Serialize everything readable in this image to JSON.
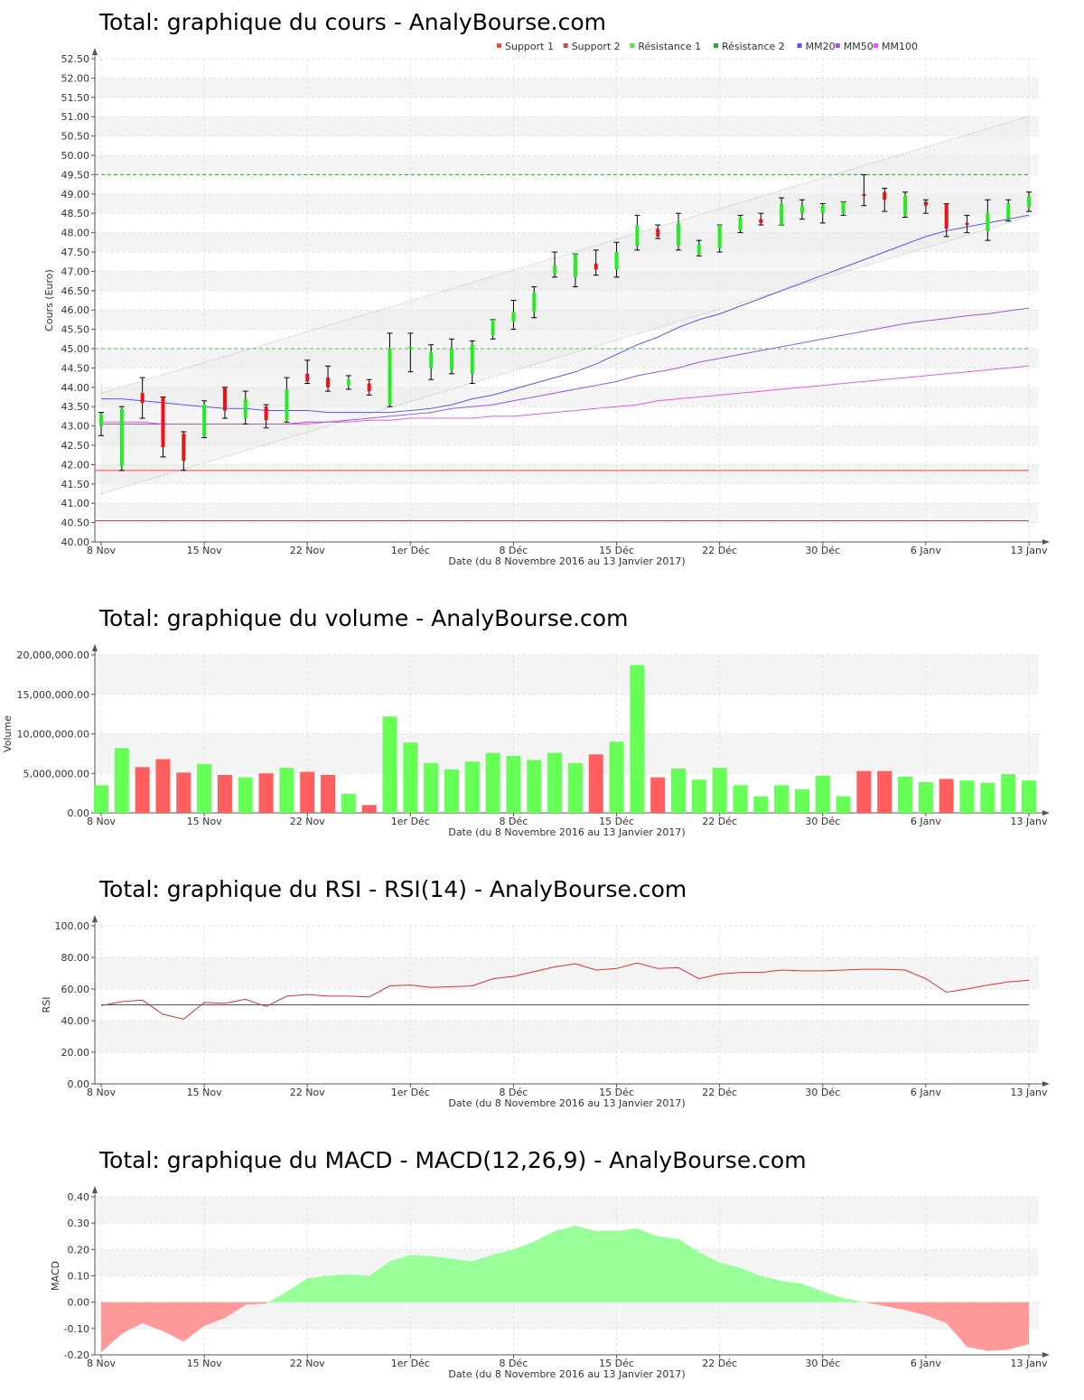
{
  "x_ticks": [
    "8 Nov",
    "15 Nov",
    "22 Nov",
    "1er Déc",
    "8 Déc",
    "15 Déc",
    "22 Déc",
    "30 Déc",
    "6 Janv",
    "13 Janv"
  ],
  "x_axis_label": "Date (du 8 Novembre 2016 au 13 Janvier 2017)",
  "chart_data": [
    {
      "type": "candlestick",
      "title": "Total: graphique du cours - AnalyBourse.com",
      "ylabel": "Cours (Euro)",
      "ylim": [
        40.0,
        52.5
      ],
      "yticks": [
        "40.00",
        "40.50",
        "41.00",
        "41.50",
        "42.00",
        "42.50",
        "43.00",
        "43.50",
        "44.00",
        "44.50",
        "45.00",
        "45.50",
        "46.00",
        "46.50",
        "47.00",
        "47.50",
        "48.00",
        "48.50",
        "49.00",
        "49.50",
        "50.00",
        "50.50",
        "51.00",
        "51.50",
        "52.00",
        "52.50"
      ],
      "legend": [
        {
          "label": "Support 1",
          "color": "#e05050"
        },
        {
          "label": "Support 2",
          "color": "#b05050"
        },
        {
          "label": "Résistance 1",
          "color": "#50e050"
        },
        {
          "label": "Résistance 2",
          "color": "#30a030"
        },
        {
          "label": "MM20",
          "color": "#5555ff"
        },
        {
          "label": "MM50",
          "color": "#9955ee"
        },
        {
          "label": "MM100",
          "color": "#ee55ee"
        }
      ],
      "support_1": 41.85,
      "support_2": 40.55,
      "resistance_1": 45.0,
      "resistance_2": 49.5,
      "candles": [
        {
          "o": 43.0,
          "h": 43.35,
          "l": 42.75,
          "c": 43.3
        },
        {
          "o": 41.95,
          "h": 43.5,
          "l": 41.85,
          "c": 43.45
        },
        {
          "o": 43.85,
          "h": 44.25,
          "l": 43.2,
          "c": 43.6
        },
        {
          "o": 43.75,
          "h": 43.75,
          "l": 42.2,
          "c": 42.45
        },
        {
          "o": 42.8,
          "h": 42.85,
          "l": 41.85,
          "c": 42.1
        },
        {
          "o": 42.75,
          "h": 43.65,
          "l": 42.7,
          "c": 43.55
        },
        {
          "o": 44.0,
          "h": 44.0,
          "l": 43.2,
          "c": 43.4
        },
        {
          "o": 43.2,
          "h": 43.9,
          "l": 43.05,
          "c": 43.7
        },
        {
          "o": 43.5,
          "h": 43.55,
          "l": 42.95,
          "c": 43.15
        },
        {
          "o": 43.15,
          "h": 44.25,
          "l": 43.1,
          "c": 43.95
        },
        {
          "o": 44.35,
          "h": 44.7,
          "l": 44.1,
          "c": 44.15
        },
        {
          "o": 44.25,
          "h": 44.55,
          "l": 43.9,
          "c": 44.0
        },
        {
          "o": 44.05,
          "h": 44.3,
          "l": 43.95,
          "c": 44.2
        },
        {
          "o": 44.1,
          "h": 44.2,
          "l": 43.8,
          "c": 43.9
        },
        {
          "o": 43.55,
          "h": 45.4,
          "l": 43.5,
          "c": 45.0
        },
        {
          "o": 45.0,
          "h": 45.4,
          "l": 44.4,
          "c": 45.05
        },
        {
          "o": 44.5,
          "h": 45.1,
          "l": 44.2,
          "c": 44.9
        },
        {
          "o": 44.45,
          "h": 45.25,
          "l": 44.35,
          "c": 45.0
        },
        {
          "o": 44.35,
          "h": 45.2,
          "l": 44.1,
          "c": 45.1
        },
        {
          "o": 45.35,
          "h": 45.75,
          "l": 45.25,
          "c": 45.75
        },
        {
          "o": 45.7,
          "h": 46.25,
          "l": 45.5,
          "c": 45.95
        },
        {
          "o": 45.95,
          "h": 46.6,
          "l": 45.8,
          "c": 46.45
        },
        {
          "o": 46.95,
          "h": 47.5,
          "l": 46.85,
          "c": 47.15
        },
        {
          "o": 46.85,
          "h": 47.45,
          "l": 46.6,
          "c": 47.45
        },
        {
          "o": 47.2,
          "h": 47.55,
          "l": 46.9,
          "c": 47.05
        },
        {
          "o": 47.05,
          "h": 47.75,
          "l": 46.85,
          "c": 47.5
        },
        {
          "o": 47.65,
          "h": 48.45,
          "l": 47.55,
          "c": 48.2
        },
        {
          "o": 48.1,
          "h": 48.2,
          "l": 47.85,
          "c": 47.9
        },
        {
          "o": 47.65,
          "h": 48.5,
          "l": 47.55,
          "c": 48.25
        },
        {
          "o": 47.45,
          "h": 47.8,
          "l": 47.4,
          "c": 47.7
        },
        {
          "o": 47.6,
          "h": 48.2,
          "l": 47.5,
          "c": 48.2
        },
        {
          "o": 48.05,
          "h": 48.45,
          "l": 48.0,
          "c": 48.4
        },
        {
          "o": 48.35,
          "h": 48.5,
          "l": 48.2,
          "c": 48.25
        },
        {
          "o": 48.2,
          "h": 48.9,
          "l": 48.2,
          "c": 48.75
        },
        {
          "o": 48.5,
          "h": 48.85,
          "l": 48.35,
          "c": 48.7
        },
        {
          "o": 48.5,
          "h": 48.75,
          "l": 48.25,
          "c": 48.7
        },
        {
          "o": 48.5,
          "h": 48.8,
          "l": 48.45,
          "c": 48.8
        },
        {
          "o": 49.0,
          "h": 49.5,
          "l": 48.7,
          "c": 48.95
        },
        {
          "o": 49.05,
          "h": 49.15,
          "l": 48.55,
          "c": 48.85
        },
        {
          "o": 48.45,
          "h": 49.05,
          "l": 48.4,
          "c": 48.95
        },
        {
          "o": 48.8,
          "h": 48.85,
          "l": 48.5,
          "c": 48.7
        },
        {
          "o": 48.75,
          "h": 48.75,
          "l": 47.9,
          "c": 48.1
        },
        {
          "o": 48.25,
          "h": 48.45,
          "l": 48.0,
          "c": 48.2
        },
        {
          "o": 48.05,
          "h": 48.85,
          "l": 47.8,
          "c": 48.5
        },
        {
          "o": 48.35,
          "h": 48.85,
          "l": 48.3,
          "c": 48.75
        },
        {
          "o": 48.65,
          "h": 49.05,
          "l": 48.55,
          "c": 48.95
        }
      ],
      "mm20": [
        43.7,
        43.7,
        43.65,
        43.6,
        43.55,
        43.5,
        43.45,
        43.45,
        43.4,
        43.4,
        43.4,
        43.35,
        43.35,
        43.35,
        43.35,
        43.4,
        43.45,
        43.55,
        43.7,
        43.8,
        43.95,
        44.1,
        44.25,
        44.4,
        44.6,
        44.85,
        45.1,
        45.3,
        45.55,
        45.75,
        45.9,
        46.1,
        46.3,
        46.5,
        46.7,
        46.9,
        47.1,
        47.3,
        47.5,
        47.7,
        47.9,
        48.05,
        48.15,
        48.25,
        48.35,
        48.45
      ],
      "mm50": [
        43.05,
        43.05,
        43.05,
        43.05,
        43.05,
        43.05,
        43.05,
        43.05,
        43.05,
        43.05,
        43.1,
        43.1,
        43.15,
        43.2,
        43.25,
        43.3,
        43.35,
        43.45,
        43.5,
        43.55,
        43.65,
        43.75,
        43.85,
        43.95,
        44.05,
        44.15,
        44.3,
        44.4,
        44.5,
        44.65,
        44.75,
        44.85,
        44.95,
        45.05,
        45.15,
        45.25,
        45.35,
        45.45,
        45.55,
        45.65,
        45.72,
        45.78,
        45.85,
        45.9,
        45.98,
        46.05
      ],
      "mm100": [
        43.1,
        43.1,
        43.1,
        43.05,
        43.05,
        43.05,
        43.05,
        43.05,
        43.05,
        43.05,
        43.05,
        43.1,
        43.1,
        43.15,
        43.15,
        43.2,
        43.2,
        43.2,
        43.2,
        43.25,
        43.25,
        43.3,
        43.35,
        43.4,
        43.45,
        43.5,
        43.55,
        43.65,
        43.7,
        43.75,
        43.8,
        43.85,
        43.9,
        43.95,
        44.0,
        44.05,
        44.1,
        44.15,
        44.2,
        44.25,
        44.3,
        44.35,
        44.4,
        44.45,
        44.5,
        44.55
      ]
    },
    {
      "type": "bar",
      "title": "Total: graphique du volume - AnalyBourse.com",
      "ylabel": "Volume",
      "ylim": [
        0,
        20000000
      ],
      "yticks": [
        "0.00",
        "5,000,000.00",
        "10,000,000.00",
        "15,000,000.00",
        "20,000,000.00"
      ],
      "values": [
        3500000,
        8200000,
        5800000,
        6800000,
        5100000,
        6200000,
        4800000,
        4500000,
        5000000,
        5700000,
        5200000,
        4800000,
        2400000,
        1000000,
        12200000,
        8900000,
        6300000,
        5500000,
        6500000,
        7600000,
        7200000,
        6700000,
        7600000,
        6300000,
        7400000,
        9000000,
        18700000,
        4500000,
        5600000,
        4200000,
        5700000,
        3500000,
        2100000,
        3500000,
        3000000,
        4700000,
        2100000,
        5300000,
        5300000,
        4600000,
        3900000,
        4300000,
        4100000,
        3800000,
        4900000,
        4100000
      ],
      "up": [
        true,
        true,
        false,
        false,
        false,
        true,
        false,
        true,
        false,
        true,
        false,
        false,
        true,
        false,
        true,
        true,
        true,
        true,
        true,
        true,
        true,
        true,
        true,
        true,
        false,
        true,
        true,
        false,
        true,
        true,
        true,
        true,
        true,
        true,
        true,
        true,
        true,
        false,
        false,
        true,
        true,
        false,
        true,
        true,
        true,
        true
      ]
    },
    {
      "type": "line",
      "title": "Total: graphique du RSI - RSI(14) - AnalyBourse.com",
      "ylabel": "RSI",
      "ylim": [
        0,
        100
      ],
      "yticks": [
        "0.00",
        "20.00",
        "40.00",
        "60.00",
        "80.00",
        "100.00"
      ],
      "reference": 50,
      "values": [
        49.5,
        52,
        53,
        44,
        41,
        51.5,
        51,
        53.5,
        49,
        55.5,
        56.5,
        55.5,
        55.5,
        55,
        62,
        62.5,
        61,
        61.5,
        62,
        66.5,
        68,
        71,
        74,
        76,
        72,
        73,
        76.5,
        73,
        73.5,
        66.5,
        69.5,
        70.5,
        70.5,
        72,
        71.5,
        71.5,
        72,
        72.5,
        72.5,
        72,
        66.5,
        58,
        60,
        62.5,
        64.5,
        65.5
      ]
    },
    {
      "type": "area",
      "title": "Total: graphique du MACD - MACD(12,26,9) - AnalyBourse.com",
      "ylabel": "MACD",
      "ylim": [
        -0.2,
        0.4
      ],
      "yticks": [
        "-0.20",
        "-0.10",
        "0.00",
        "0.10",
        "0.20",
        "0.30",
        "0.40"
      ],
      "values": [
        -0.19,
        -0.12,
        -0.08,
        -0.11,
        -0.15,
        -0.09,
        -0.06,
        -0.01,
        -0.005,
        0.04,
        0.09,
        0.1,
        0.105,
        0.1,
        0.155,
        0.18,
        0.175,
        0.165,
        0.155,
        0.18,
        0.2,
        0.23,
        0.27,
        0.29,
        0.27,
        0.27,
        0.28,
        0.25,
        0.24,
        0.19,
        0.15,
        0.13,
        0.1,
        0.08,
        0.07,
        0.04,
        0.015,
        0.0,
        -0.015,
        -0.03,
        -0.05,
        -0.08,
        -0.17,
        -0.185,
        -0.18,
        -0.16
      ]
    }
  ]
}
